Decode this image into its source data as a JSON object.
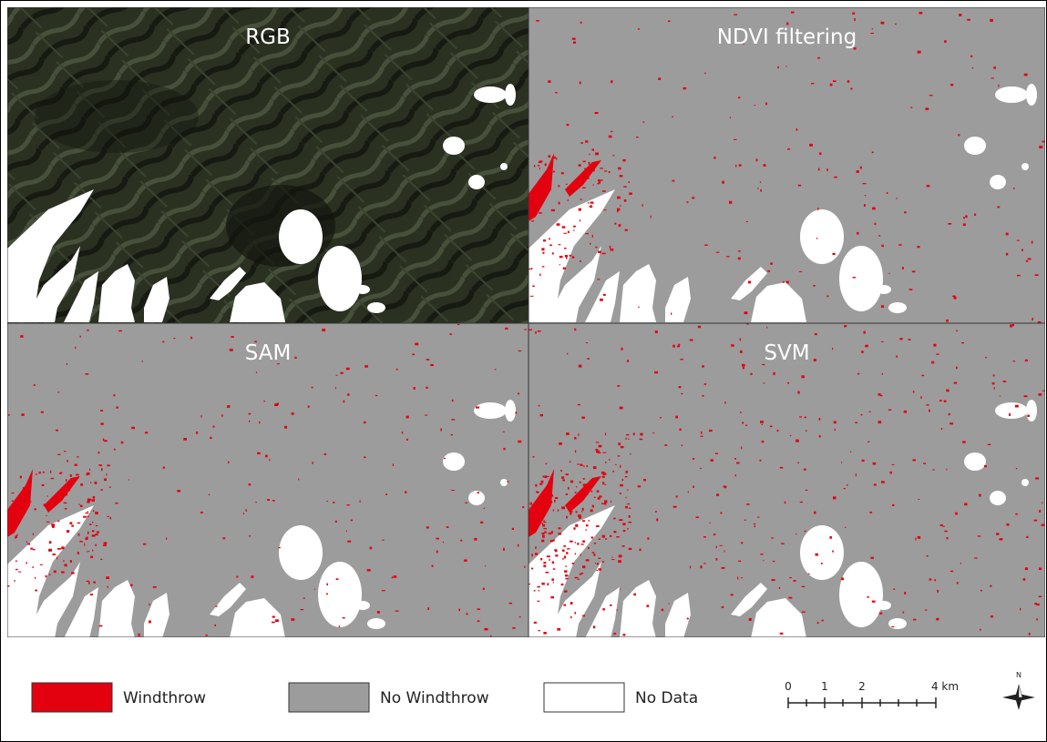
{
  "panels": [
    {
      "title": "RGB"
    },
    {
      "title": "NDVI filtering"
    },
    {
      "title": "SAM"
    },
    {
      "title": "SVM"
    }
  ],
  "legend": {
    "items": [
      {
        "label": "Windthrow",
        "color": "#e3000f"
      },
      {
        "label": "No Windthrow",
        "color": "#9c9c9c"
      },
      {
        "label": "No Data",
        "color": "#ffffff"
      }
    ]
  },
  "scale_bar": {
    "labels": [
      "0",
      "1",
      "2",
      "4 km"
    ]
  },
  "north_arrow": {
    "label": "N"
  }
}
